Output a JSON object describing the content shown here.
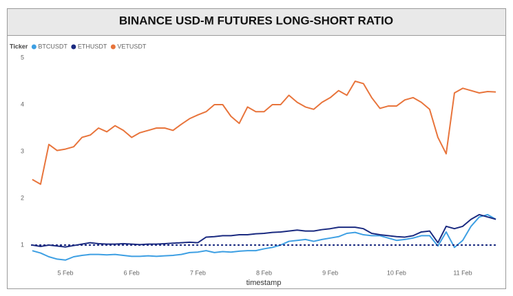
{
  "chart_data": {
    "type": "line",
    "title": "BINANCE USD-M FUTURES LONG-SHORT RATIO",
    "legend_title": "Ticker",
    "x_label": "timestamp",
    "x": [
      4.5,
      4.625,
      4.75,
      4.875,
      5,
      5.125,
      5.25,
      5.375,
      5.5,
      5.625,
      5.75,
      5.875,
      6,
      6.125,
      6.25,
      6.375,
      6.5,
      6.625,
      6.75,
      6.875,
      7,
      7.125,
      7.25,
      7.375,
      7.5,
      7.625,
      7.75,
      7.875,
      8,
      8.125,
      8.25,
      8.375,
      8.5,
      8.625,
      8.75,
      8.875,
      9,
      9.125,
      9.25,
      9.375,
      9.5,
      9.625,
      9.75,
      9.875,
      10,
      10.125,
      10.25,
      10.375,
      10.5,
      10.625,
      10.75,
      10.875,
      11,
      11.125,
      11.25,
      11.375,
      11.5
    ],
    "xlim": [
      4.48,
      11.52
    ],
    "xticks": [
      {
        "value": 5,
        "label": "5 Feb"
      },
      {
        "value": 6,
        "label": "6 Feb"
      },
      {
        "value": 7,
        "label": "7 Feb"
      },
      {
        "value": 8,
        "label": "8 Feb"
      },
      {
        "value": 9,
        "label": "9 Feb"
      },
      {
        "value": 10,
        "label": "10 Feb"
      },
      {
        "value": 11,
        "label": "11 Feb"
      }
    ],
    "ylim": [
      0.5,
      5
    ],
    "yticks": [
      1,
      2,
      3,
      4,
      5
    ],
    "grid": false,
    "reference_line": {
      "value": 1,
      "color": "#1a2a80"
    },
    "series": [
      {
        "name": "BTCUSDT",
        "color": "#3d9fe3",
        "values": [
          0.88,
          0.83,
          0.75,
          0.7,
          0.68,
          0.75,
          0.78,
          0.8,
          0.8,
          0.79,
          0.8,
          0.78,
          0.76,
          0.76,
          0.77,
          0.76,
          0.77,
          0.78,
          0.8,
          0.84,
          0.85,
          0.88,
          0.84,
          0.86,
          0.85,
          0.87,
          0.88,
          0.88,
          0.92,
          0.95,
          1.0,
          1.08,
          1.1,
          1.12,
          1.08,
          1.12,
          1.15,
          1.18,
          1.25,
          1.27,
          1.22,
          1.2,
          1.2,
          1.15,
          1.1,
          1.12,
          1.15,
          1.2,
          1.2,
          0.98,
          1.28,
          0.95,
          1.1,
          1.4,
          1.6,
          1.65,
          1.55
        ]
      },
      {
        "name": "ETHUSDT",
        "color": "#1a2a80",
        "values": [
          1.0,
          0.97,
          1.0,
          0.98,
          0.96,
          0.99,
          1.02,
          1.05,
          1.03,
          1.02,
          1.02,
          1.03,
          1.02,
          1.01,
          1.02,
          1.02,
          1.03,
          1.04,
          1.05,
          1.06,
          1.05,
          1.17,
          1.18,
          1.2,
          1.2,
          1.22,
          1.22,
          1.24,
          1.25,
          1.27,
          1.28,
          1.3,
          1.32,
          1.3,
          1.3,
          1.33,
          1.35,
          1.38,
          1.38,
          1.38,
          1.35,
          1.25,
          1.22,
          1.2,
          1.18,
          1.17,
          1.2,
          1.28,
          1.3,
          1.05,
          1.4,
          1.35,
          1.4,
          1.55,
          1.65,
          1.6,
          1.55
        ]
      },
      {
        "name": "VETUSDT",
        "color": "#e8743b",
        "values": [
          2.4,
          2.3,
          3.15,
          3.02,
          3.05,
          3.1,
          3.3,
          3.35,
          3.5,
          3.42,
          3.55,
          3.45,
          3.3,
          3.4,
          3.45,
          3.5,
          3.5,
          3.45,
          3.58,
          3.7,
          3.78,
          3.85,
          4.0,
          4.0,
          3.75,
          3.6,
          3.95,
          3.85,
          3.85,
          4.0,
          4.0,
          4.2,
          4.05,
          3.95,
          3.9,
          4.05,
          4.15,
          4.3,
          4.2,
          4.5,
          4.45,
          4.15,
          3.92,
          3.97,
          3.97,
          4.1,
          4.15,
          4.05,
          3.9,
          3.3,
          2.95,
          4.25,
          4.35,
          4.3,
          4.25,
          4.28,
          4.27
        ]
      }
    ]
  }
}
